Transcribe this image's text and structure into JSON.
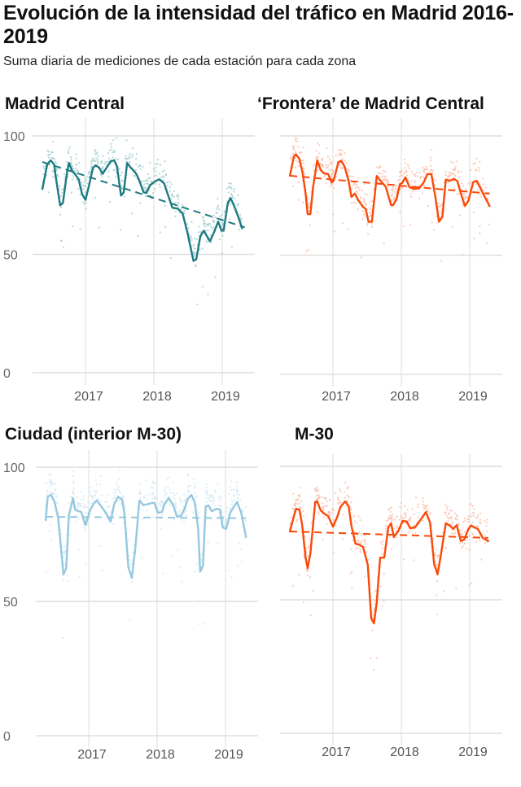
{
  "header": {
    "title": "Evolución de la intensidad del tráfico en Madrid 2016-2019",
    "subtitle": "Suma diaria de mediciones de cada estación para cada zona"
  },
  "chart_data": [
    {
      "type": "line",
      "title": "Madrid Central",
      "color": "#1e7b82",
      "scatter_color": "#9cc9c9",
      "ylim": [
        0,
        100
      ],
      "yticks": [
        "0",
        "50",
        "100"
      ],
      "xticks": [
        "2017",
        "2018",
        "2019"
      ],
      "xtick_values": [
        2017,
        2018,
        2019
      ],
      "grid": true,
      "show_yticks": true,
      "series": [
        {
          "name": "smoothed",
          "style": "solid",
          "x": [
            2016.37,
            2016.44,
            2016.49,
            2016.54,
            2016.58,
            2016.63,
            2016.67,
            2016.73,
            2016.76,
            2016.8,
            2016.86,
            2016.9,
            2016.95,
            2017.0,
            2017.06,
            2017.11,
            2017.15,
            2017.2,
            2017.25,
            2017.31,
            2017.37,
            2017.42,
            2017.46,
            2017.52,
            2017.56,
            2017.61,
            2017.65,
            2017.73,
            2017.77,
            2017.85,
            2017.89,
            2017.94,
            2018.01,
            2018.08,
            2018.15,
            2018.21,
            2018.27,
            2018.35,
            2018.42,
            2018.49,
            2018.54,
            2018.58,
            2018.62,
            2018.68,
            2018.73,
            2018.79,
            2018.82,
            2018.88,
            2018.94,
            2018.99,
            2019.02,
            2019.08,
            2019.12,
            2019.17,
            2019.23,
            2019.29
          ],
          "y": [
            77.6,
            88,
            89.7,
            88,
            80,
            70.7,
            71.7,
            84.5,
            88.6,
            85.5,
            83.4,
            81.7,
            75.5,
            73,
            80,
            86.6,
            87.6,
            86.6,
            84,
            86.6,
            89.3,
            89.7,
            87.2,
            74.8,
            76.2,
            88.6,
            87,
            84.5,
            82.4,
            76.2,
            75.9,
            79,
            80.7,
            81.7,
            80,
            74.8,
            69.7,
            69.3,
            67.2,
            59.3,
            52.4,
            47.2,
            47.9,
            57.6,
            60,
            56.9,
            55.5,
            59.3,
            63.8,
            60,
            60,
            71.4,
            73.8,
            70.7,
            66.2,
            61
          ]
        },
        {
          "name": "trend",
          "style": "dashed",
          "x": [
            2016.37,
            2019.33
          ],
          "y": [
            89,
            61.4
          ]
        }
      ]
    },
    {
      "type": "line",
      "title": "‘Frontera’ de Madrid Central",
      "color": "#fa4a0a",
      "scatter_color": "#f9b9a0",
      "ylim": [
        0,
        100
      ],
      "yticks": [],
      "xticks": [
        "2017",
        "2018",
        "2019"
      ],
      "xtick_values": [
        2017,
        2018,
        2019
      ],
      "grid": true,
      "show_yticks": false,
      "series": [
        {
          "name": "smoothed",
          "style": "solid",
          "x": [
            2016.37,
            2016.43,
            2016.46,
            2016.51,
            2016.56,
            2016.6,
            2016.63,
            2016.67,
            2016.71,
            2016.77,
            2016.82,
            2016.87,
            2016.93,
            2016.98,
            2017.01,
            2017.08,
            2017.12,
            2017.17,
            2017.23,
            2017.27,
            2017.32,
            2017.37,
            2017.43,
            2017.48,
            2017.52,
            2017.57,
            2017.64,
            2017.7,
            2017.77,
            2017.85,
            2017.88,
            2017.93,
            2017.98,
            2018.01,
            2018.06,
            2018.12,
            2018.18,
            2018.26,
            2018.33,
            2018.38,
            2018.44,
            2018.5,
            2018.55,
            2018.6,
            2018.65,
            2018.71,
            2018.77,
            2018.82,
            2018.88,
            2018.93,
            2018.98,
            2019.05,
            2019.1,
            2019.15,
            2019.21,
            2019.29
          ],
          "y": [
            83.3,
            91.5,
            92.2,
            90.4,
            84,
            75.8,
            67.2,
            67.2,
            78.5,
            89.8,
            85.7,
            84.3,
            84,
            80.5,
            81.2,
            89,
            89.6,
            87.2,
            81,
            74.4,
            75.8,
            73,
            70.6,
            69.3,
            64,
            64,
            83.2,
            81,
            78.8,
            71,
            71,
            73.4,
            79.8,
            80.2,
            82.6,
            78.5,
            77.8,
            78,
            80.6,
            84,
            84,
            74,
            64,
            66,
            81.6,
            81.2,
            82,
            81,
            75,
            70.6,
            72.7,
            80.5,
            81.2,
            78.5,
            75,
            70.6
          ]
        },
        {
          "name": "trend",
          "style": "dashed",
          "x": [
            2016.37,
            2019.29
          ],
          "y": [
            83.3,
            75.8
          ]
        }
      ]
    },
    {
      "type": "line",
      "title": "Ciudad (interior M-30)",
      "color": "#95c8df",
      "scatter_color": "#cfe6f1",
      "ylim": [
        0,
        100
      ],
      "yticks": [
        "0",
        "50",
        "100"
      ],
      "xticks": [
        "2017",
        "2018",
        "2019"
      ],
      "xtick_values": [
        2017,
        2018,
        2019
      ],
      "grid": true,
      "show_yticks": true,
      "series": [
        {
          "name": "smoothed",
          "style": "solid",
          "x": [
            2016.37,
            2016.4,
            2016.45,
            2016.5,
            2016.55,
            2016.58,
            2016.63,
            2016.67,
            2016.71,
            2016.77,
            2016.8,
            2016.85,
            2016.89,
            2016.95,
            2016.96,
            2017.01,
            2017.07,
            2017.12,
            2017.25,
            2017.32,
            2017.37,
            2017.43,
            2017.49,
            2017.52,
            2017.58,
            2017.63,
            2017.68,
            2017.74,
            2017.8,
            2017.93,
            2017.96,
            2018.01,
            2018.07,
            2018.11,
            2018.17,
            2018.24,
            2018.29,
            2018.35,
            2018.4,
            2018.45,
            2018.5,
            2018.55,
            2018.6,
            2018.63,
            2018.67,
            2018.71,
            2018.75,
            2018.8,
            2018.87,
            2018.92,
            2018.96,
            2019.01,
            2019.07,
            2019.12,
            2019.17,
            2019.23,
            2019.3
          ],
          "y": [
            80.3,
            89,
            89.7,
            87,
            81.5,
            73.9,
            60,
            62.4,
            82,
            88.5,
            84.2,
            83.6,
            83.3,
            78.5,
            78.8,
            83.3,
            86.4,
            87.6,
            83,
            79.7,
            86,
            89,
            87.9,
            83,
            62.7,
            58.8,
            69.4,
            87.6,
            85.8,
            86.7,
            86.7,
            83,
            83.3,
            86.4,
            88.5,
            85.5,
            81.5,
            81.8,
            84.5,
            88.2,
            89.7,
            87,
            77,
            61.2,
            63.3,
            85.2,
            85.8,
            83.6,
            84.5,
            84.2,
            77.6,
            77,
            83,
            85.2,
            87,
            83,
            74
          ]
        },
        {
          "name": "trend",
          "style": "dashed",
          "x": [
            2016.37,
            2019.3
          ],
          "y": [
            81.5,
            81
          ]
        }
      ]
    },
    {
      "type": "line",
      "title": "M-30",
      "color": "#fa4a0a",
      "scatter_color": "#f9b9a0",
      "ylim": [
        0,
        100
      ],
      "yticks": [],
      "xticks": [
        "2017",
        "2018",
        "2019"
      ],
      "xtick_values": [
        2017,
        2018,
        2019
      ],
      "grid": true,
      "show_yticks": false,
      "series": [
        {
          "name": "smoothed",
          "style": "solid",
          "x": [
            2016.37,
            2016.43,
            2016.46,
            2016.51,
            2016.55,
            2016.6,
            2016.63,
            2016.67,
            2016.74,
            2016.77,
            2016.82,
            2016.87,
            2016.93,
            2017.0,
            2017.06,
            2017.11,
            2017.18,
            2017.23,
            2017.27,
            2017.33,
            2017.38,
            2017.44,
            2017.51,
            2017.56,
            2017.6,
            2017.64,
            2017.69,
            2017.75,
            2017.81,
            2017.85,
            2017.89,
            2017.96,
            2018.02,
            2018.08,
            2018.13,
            2018.2,
            2018.27,
            2018.36,
            2018.42,
            2018.48,
            2018.53,
            2018.58,
            2018.65,
            2018.71,
            2018.76,
            2018.81,
            2018.87,
            2018.92,
            2018.98,
            2019.02,
            2019.05,
            2019.12,
            2019.19,
            2019.27
          ],
          "y": [
            75.6,
            81.4,
            84.1,
            83.8,
            78,
            65.8,
            61.9,
            67.4,
            86.6,
            86.9,
            83.5,
            82.3,
            81.4,
            77.4,
            80.8,
            84.8,
            86.9,
            85,
            77.7,
            71,
            70.7,
            69.8,
            63.1,
            43,
            41.2,
            49,
            65.8,
            65.8,
            77.1,
            78.7,
            73.5,
            75.9,
            79.6,
            79.3,
            76.8,
            77.1,
            79.6,
            82.9,
            79,
            63.4,
            59.5,
            67,
            78.7,
            77.8,
            76.5,
            78,
            72,
            72.6,
            76.5,
            77.8,
            77.4,
            76.5,
            73.2,
            72
          ]
        },
        {
          "name": "trend",
          "style": "dashed",
          "x": [
            2016.37,
            2019.27
          ],
          "y": [
            75.6,
            73.2
          ]
        }
      ]
    }
  ]
}
